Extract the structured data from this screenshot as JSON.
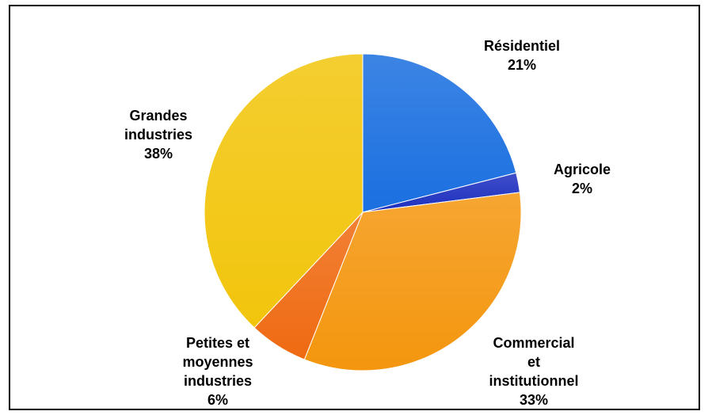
{
  "chart_data": {
    "type": "pie",
    "title": "",
    "slices": [
      {
        "label": "Résidentiel",
        "value": 21,
        "value_text": "21%",
        "color": "#1a6fe0"
      },
      {
        "label": "Agricole",
        "value": 2,
        "value_text": "2%",
        "color": "#1d2fbf"
      },
      {
        "label": "Commercial et institutionnel",
        "value": 33,
        "value_text": "33%",
        "color": "#f4960e"
      },
      {
        "label": "Petites et moyennes industries",
        "value": 6,
        "value_text": "6%",
        "color": "#ef6a12"
      },
      {
        "label": "Grandes industries",
        "value": 38,
        "value_text": "38%",
        "color": "#f2c50c"
      }
    ],
    "label_lines": [
      {
        "lines": [
          "Résidentiel"
        ],
        "pct": "21%"
      },
      {
        "lines": [
          "Agricole"
        ],
        "pct": "2%"
      },
      {
        "lines": [
          "Commercial",
          "et",
          "institutionnel"
        ],
        "pct": "33%"
      },
      {
        "lines": [
          "Petites et",
          "moyennes",
          "industries"
        ],
        "pct": "6%"
      },
      {
        "lines": [
          "Grandes",
          "industries"
        ],
        "pct": "38%"
      }
    ],
    "legend": "none"
  }
}
